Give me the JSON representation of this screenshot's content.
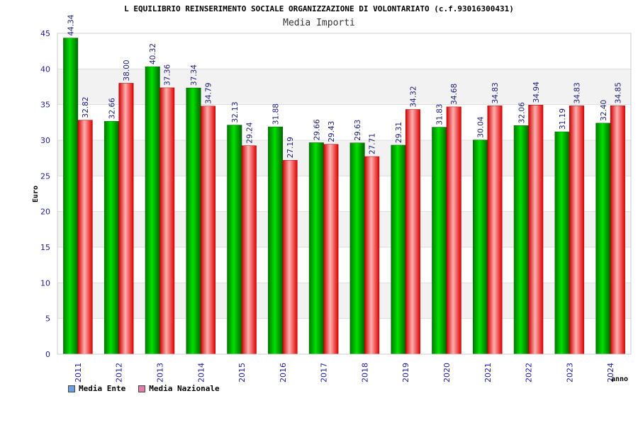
{
  "chart_data": {
    "type": "bar",
    "title": "L EQUILIBRIO REINSERIMENTO SOCIALE ORGANIZZAZIONE DI VOLONTARIATO (c.f.93016300431)",
    "subtitle": "Media Importi",
    "xlabel": "anno",
    "ylabel": "Euro",
    "ylim": [
      0,
      45
    ],
    "yticks": [
      0,
      5,
      10,
      15,
      20,
      25,
      30,
      35,
      40,
      45
    ],
    "categories": [
      "2011",
      "2012",
      "2013",
      "2014",
      "2015",
      "2016",
      "2017",
      "2018",
      "2019",
      "2020",
      "2021",
      "2022",
      "2023",
      "2024"
    ],
    "series": [
      {
        "name": "Media Ente",
        "color": "#00c800",
        "values": [
          44.34,
          32.66,
          40.32,
          37.34,
          32.13,
          31.88,
          29.66,
          29.63,
          29.31,
          31.83,
          30.04,
          32.06,
          31.19,
          32.4
        ],
        "labels": [
          "44.34",
          "32.66",
          "40.32",
          "37.34",
          "32.13",
          "31.88",
          "29.66",
          "29.63",
          "29.31",
          "31.83",
          "30.04",
          "32.06",
          "31.19",
          "32.40"
        ]
      },
      {
        "name": "Media Nazionale",
        "color": "#ff1e1e",
        "values": [
          32.82,
          38.0,
          37.36,
          34.79,
          29.24,
          27.19,
          29.43,
          27.71,
          34.32,
          34.68,
          34.83,
          34.94,
          34.83,
          34.85
        ],
        "labels": [
          "32.82",
          "38.00",
          "37.36",
          "34.79",
          "29.24",
          "27.19",
          "29.43",
          "27.71",
          "34.32",
          "34.68",
          "34.83",
          "34.94",
          "34.83",
          "34.85"
        ]
      }
    ],
    "legend": {
      "placement": "bottom-left",
      "items": [
        {
          "label": "Media Ente",
          "color": "#6aa0e0"
        },
        {
          "label": "Media Nazionale",
          "color": "#e07fa8"
        }
      ]
    },
    "grid": true
  }
}
